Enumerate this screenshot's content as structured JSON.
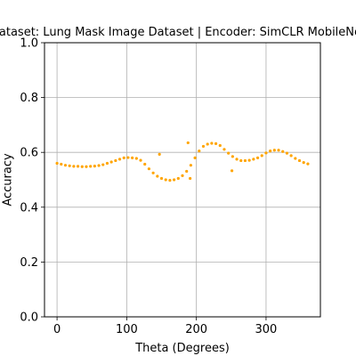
{
  "chart_data": {
    "type": "scatter",
    "title": "Dataset: Lung Mask Image Dataset | Encoder: SimCLR MobileNet",
    "xlabel": "Theta (Degrees)",
    "ylabel": "Accuracy",
    "xlim": [
      -18,
      378
    ],
    "ylim": [
      0,
      1
    ],
    "xticks": [
      0,
      100,
      200,
      300
    ],
    "xtick_labels": [
      "0",
      "100",
      "200",
      "300"
    ],
    "yticks": [
      0,
      0.2,
      0.4,
      0.6,
      0.8,
      1.0
    ],
    "ytick_labels": [
      "0.0",
      "0.2",
      "0.4",
      "0.6",
      "0.8",
      "1.0"
    ],
    "grid": true,
    "marker_color": "#FFA500",
    "series": [
      {
        "x": [
          0,
          6,
          12,
          18,
          24,
          30,
          36,
          42,
          48,
          54,
          60,
          66,
          72,
          78,
          84,
          90,
          96,
          102,
          108,
          114,
          120,
          126,
          132,
          138,
          144,
          150,
          156,
          162,
          168,
          174,
          180,
          186,
          192,
          198,
          204,
          210,
          216,
          222,
          228,
          234,
          240,
          246,
          252,
          258,
          264,
          270,
          276,
          282,
          288,
          294,
          300,
          306,
          312,
          318,
          324,
          330,
          336,
          342,
          348,
          354,
          360
        ],
        "y": [
          0.56,
          0.557,
          0.553,
          0.551,
          0.549,
          0.549,
          0.548,
          0.548,
          0.549,
          0.55,
          0.552,
          0.555,
          0.56,
          0.565,
          0.57,
          0.575,
          0.58,
          0.581,
          0.58,
          0.578,
          0.571,
          0.557,
          0.54,
          0.525,
          0.513,
          0.505,
          0.5,
          0.498,
          0.5,
          0.505,
          0.515,
          0.531,
          0.553,
          0.58,
          0.605,
          0.622,
          0.63,
          0.633,
          0.632,
          0.625,
          0.611,
          0.597,
          0.585,
          0.575,
          0.57,
          0.57,
          0.571,
          0.575,
          0.58,
          0.588,
          0.598,
          0.605,
          0.608,
          0.608,
          0.603,
          0.597,
          0.588,
          0.578,
          0.57,
          0.563,
          0.558
        ]
      },
      {
        "x": [
          147,
          188,
          191,
          251
        ],
        "y": [
          0.593,
          0.635,
          0.505,
          0.533
        ]
      }
    ]
  }
}
